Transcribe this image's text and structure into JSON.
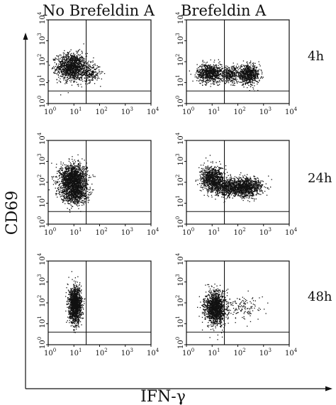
{
  "figure": {
    "column_titles": [
      "No Brefeldin A",
      "Brefeldin A"
    ],
    "row_labels": [
      "4h",
      "24h",
      "48h"
    ],
    "x_axis_title": "IFN-γ",
    "y_axis_title": "CD69"
  },
  "chart_data": {
    "type": "scatter",
    "description_kind": "flow cytometry dot plots",
    "xlabel": "IFN-γ",
    "ylabel": "CD69",
    "xscale": "log",
    "yscale": "log",
    "xlim": [
      1,
      10000
    ],
    "ylim": [
      1,
      10000
    ],
    "tick_labels": [
      "10",
      "10",
      "10",
      "10",
      "10"
    ],
    "tick_exponents": [
      "0",
      "1",
      "2",
      "3",
      "4"
    ],
    "gate": {
      "x": 30,
      "y": 4
    },
    "panels": [
      {
        "column": "No Brefeldin A",
        "row": "4h",
        "clusters": [
          {
            "cx": 8,
            "cy": 60,
            "sx": 0.28,
            "sy": 0.32,
            "n": 1300
          },
          {
            "cx": 40,
            "cy": 30,
            "sx": 0.2,
            "sy": 0.22,
            "n": 250
          }
        ]
      },
      {
        "column": "Brefeldin A",
        "row": "4h",
        "clusters": [
          {
            "cx": 8,
            "cy": 30,
            "sx": 0.25,
            "sy": 0.22,
            "n": 800
          },
          {
            "cx": 50,
            "cy": 25,
            "sx": 0.22,
            "sy": 0.2,
            "n": 300
          },
          {
            "cx": 250,
            "cy": 25,
            "sx": 0.22,
            "sy": 0.22,
            "n": 700
          }
        ]
      },
      {
        "column": "No Brefeldin A",
        "row": "24h",
        "clusters": [
          {
            "cx": 9,
            "cy": 150,
            "sx": 0.26,
            "sy": 0.35,
            "n": 1600
          },
          {
            "cx": 10,
            "cy": 30,
            "sx": 0.25,
            "sy": 0.25,
            "n": 700
          }
        ]
      },
      {
        "column": "Brefeldin A",
        "row": "24h",
        "clusters": [
          {
            "cx": 10,
            "cy": 150,
            "sx": 0.22,
            "sy": 0.3,
            "n": 900
          },
          {
            "cx": 60,
            "cy": 60,
            "sx": 0.35,
            "sy": 0.22,
            "n": 900
          },
          {
            "cx": 250,
            "cy": 60,
            "sx": 0.28,
            "sy": 0.22,
            "n": 700
          }
        ]
      },
      {
        "column": "No Brefeldin A",
        "row": "48h",
        "clusters": [
          {
            "cx": 11,
            "cy": 80,
            "sx": 0.12,
            "sy": 0.42,
            "n": 1500
          }
        ]
      },
      {
        "column": "Brefeldin A",
        "row": "48h",
        "clusters": [
          {
            "cx": 13,
            "cy": 60,
            "sx": 0.2,
            "sy": 0.38,
            "n": 1500
          },
          {
            "cx": 150,
            "cy": 60,
            "sx": 0.35,
            "sy": 0.3,
            "n": 120
          }
        ]
      }
    ]
  }
}
